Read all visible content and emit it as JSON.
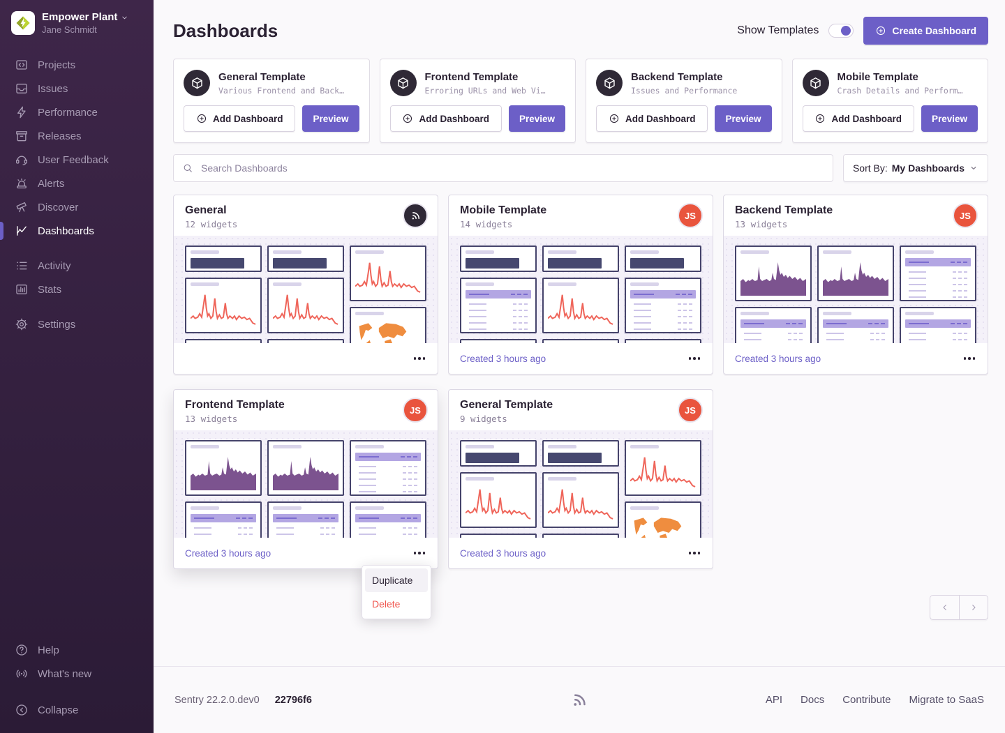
{
  "sidebar": {
    "org": {
      "name": "Empower Plant",
      "user": "Jane Schmidt"
    },
    "groups": [
      [
        {
          "label": "Projects",
          "icon": "projects",
          "active": false
        },
        {
          "label": "Issues",
          "icon": "issues",
          "active": false
        },
        {
          "label": "Performance",
          "icon": "performance",
          "active": false
        },
        {
          "label": "Releases",
          "icon": "releases",
          "active": false
        },
        {
          "label": "User Feedback",
          "icon": "feedback",
          "active": false
        },
        {
          "label": "Alerts",
          "icon": "alerts",
          "active": false
        },
        {
          "label": "Discover",
          "icon": "discover",
          "active": false
        },
        {
          "label": "Dashboards",
          "icon": "dashboards",
          "active": true
        }
      ],
      [
        {
          "label": "Activity",
          "icon": "activity",
          "active": false
        },
        {
          "label": "Stats",
          "icon": "stats",
          "active": false
        }
      ],
      [
        {
          "label": "Settings",
          "icon": "settings",
          "active": false
        }
      ]
    ],
    "footer_items": [
      {
        "label": "Help",
        "icon": "help"
      },
      {
        "label": "What's new",
        "icon": "broadcast"
      }
    ],
    "collapse": {
      "label": "Collapse",
      "icon": "collapse"
    }
  },
  "header": {
    "title": "Dashboards",
    "show_templates_label": "Show Templates",
    "show_templates_on": true,
    "create_button": "Create Dashboard"
  },
  "templates": {
    "add_label": "Add Dashboard",
    "preview_label": "Preview",
    "items": [
      {
        "title": "General Template",
        "description": "Various Frontend and Back…"
      },
      {
        "title": "Frontend Template",
        "description": "Erroring URLs and Web Vi…"
      },
      {
        "title": "Backend Template",
        "description": "Issues and Performance"
      },
      {
        "title": "Mobile Template",
        "description": "Crash Details and Perform…"
      }
    ]
  },
  "search": {
    "placeholder": "Search Dashboards"
  },
  "sort": {
    "label": "Sort By:",
    "value": "My Dashboards"
  },
  "dashboards": {
    "items": [
      {
        "title": "General",
        "subtitle": "12 widgets",
        "avatar": "sentry",
        "avatar_text": "",
        "created": "",
        "menu_open": false,
        "columns": [
          [
            "bignumber-s",
            "line-t",
            "stub-s"
          ],
          [
            "bignumber-s",
            "line-t",
            "stub-s"
          ],
          [
            "line-t",
            "map-t"
          ]
        ]
      },
      {
        "title": "Mobile Template",
        "subtitle": "14 widgets",
        "avatar": "initials",
        "avatar_text": "JS",
        "created": "Created 3 hours ago",
        "menu_open": false,
        "columns": [
          [
            "bignumber-s",
            "table-t",
            "stub-s"
          ],
          [
            "bignumber-s",
            "line-t",
            "stub-s"
          ],
          [
            "bignumber-s",
            "table-t",
            "stub-s"
          ]
        ]
      },
      {
        "title": "Backend Template",
        "subtitle": "13 widgets",
        "avatar": "initials",
        "avatar_text": "JS",
        "created": "Created 3 hours ago",
        "menu_open": false,
        "columns": [
          [
            "area-t",
            "table-t"
          ],
          [
            "area-t",
            "table-t"
          ],
          [
            "table-t",
            "table-t"
          ]
        ]
      },
      {
        "title": "Frontend Template",
        "subtitle": "13 widgets",
        "avatar": "initials",
        "avatar_text": "JS",
        "created": "Created 3 hours ago",
        "menu_open": true,
        "columns": [
          [
            "area-t",
            "table-t"
          ],
          [
            "area-t",
            "table-t"
          ],
          [
            "table-t",
            "table-t"
          ]
        ]
      },
      {
        "title": "General Template",
        "subtitle": "9 widgets",
        "avatar": "initials",
        "avatar_text": "JS",
        "created": "Created 3 hours ago",
        "menu_open": false,
        "columns": [
          [
            "bignumber-s",
            "line-t",
            "stub-s"
          ],
          [
            "bignumber-s",
            "line-t",
            "stub-s"
          ],
          [
            "line-t",
            "map-t"
          ]
        ]
      }
    ]
  },
  "context_menu": {
    "items": [
      {
        "label": "Duplicate",
        "danger": false,
        "highlighted": true
      },
      {
        "label": "Delete",
        "danger": true,
        "highlighted": false
      }
    ]
  },
  "page_footer": {
    "version": "Sentry 22.2.0.dev0",
    "build": "22796f6",
    "links": [
      "API",
      "Docs",
      "Contribute",
      "Migrate to SaaS"
    ]
  },
  "colors": {
    "accent": "#6C5FC7",
    "danger": "#F0554D",
    "avatar_red": "#E9543D",
    "chart_red": "#EF655A",
    "chart_purple": "#7C538F",
    "map_orange": "#EF8D3F",
    "widget_border": "#45436B",
    "big_number": "#46486F",
    "text": "#2B2233",
    "muted": "#857C96",
    "sidebar_top": "#3E2649",
    "sidebar_bottom": "#2B1B36"
  }
}
